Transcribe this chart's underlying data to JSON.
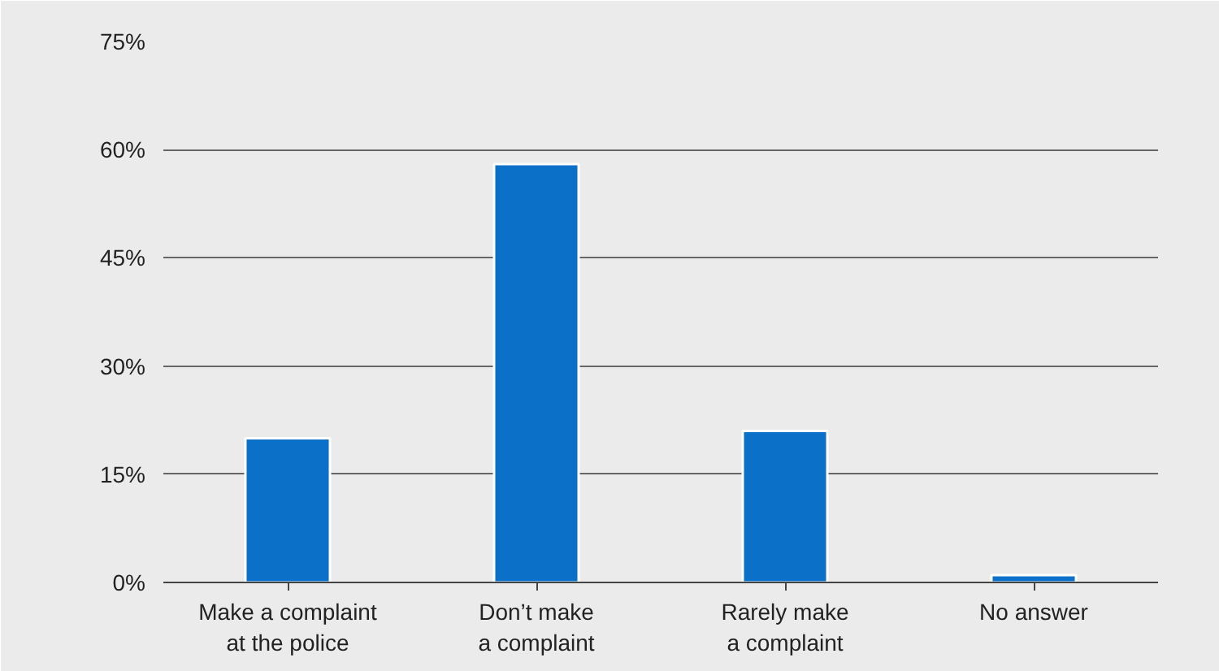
{
  "chart_data": {
    "type": "bar",
    "categories": [
      "Make a complaint at the police",
      "Don’t make a complaint",
      "Rarely make a complaint",
      "No answer"
    ],
    "values": [
      20,
      58,
      21,
      1
    ],
    "color": "#0a70c8",
    "ylim": [
      0,
      75
    ],
    "yticks": [
      {
        "value": 0,
        "label": "0%"
      },
      {
        "value": 15,
        "label": "15%"
      },
      {
        "value": 30,
        "label": "30%"
      },
      {
        "value": 45,
        "label": "45%"
      },
      {
        "value": 60,
        "label": "60%"
      },
      {
        "value": 75,
        "label": "75%"
      }
    ],
    "grid": "y"
  }
}
